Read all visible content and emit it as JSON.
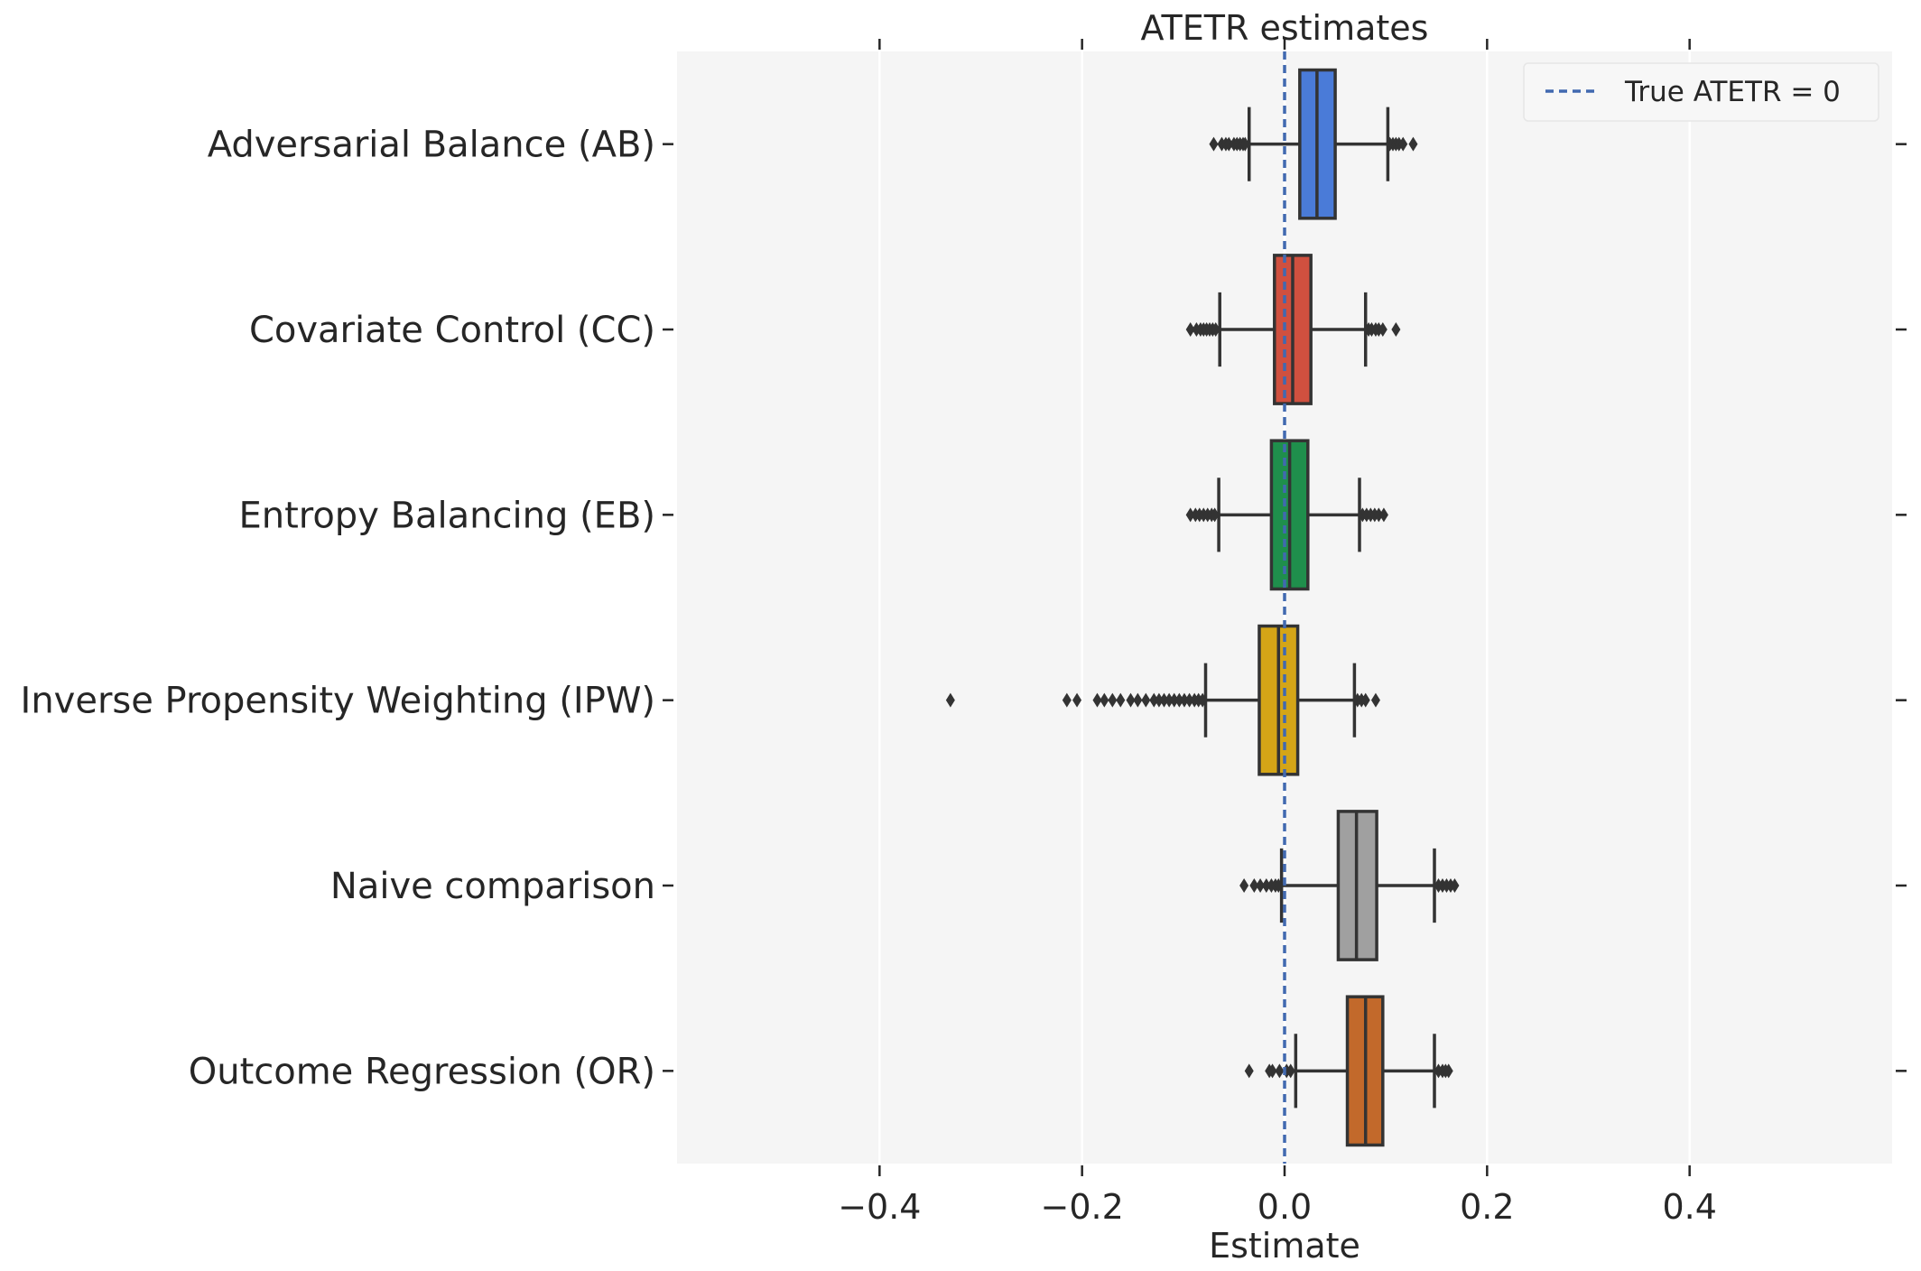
{
  "chart_data": {
    "type": "box",
    "title": "ATETR estimates",
    "xlabel": "Estimate",
    "ylabel": "",
    "xlim": [
      -0.6,
      0.6
    ],
    "x_ticks": [
      -0.4,
      -0.2,
      0.0,
      0.2,
      0.4
    ],
    "x_tick_labels": [
      "−0.4",
      "−0.2",
      "0.0",
      "0.2",
      "0.4"
    ],
    "grid": "vertical",
    "background": "#f5f5f5",
    "categories": [
      "Adversarial Balance (AB)",
      "Covariate Control (CC)",
      "Entropy Balancing (EB)",
      "Inverse Propensity Weighting (IPW)",
      "Naive comparison",
      "Outcome Regression (OR)"
    ],
    "series": [
      {
        "category": "Adversarial Balance (AB)",
        "color": "#4a7bd8",
        "whisker_low": -0.035,
        "q1": 0.015,
        "median": 0.032,
        "q3": 0.05,
        "whisker_high": 0.102,
        "outliers": [
          -0.07,
          -0.062,
          -0.058,
          -0.055,
          -0.05,
          -0.047,
          -0.044,
          -0.041,
          -0.039,
          0.104,
          0.107,
          0.11,
          0.113,
          0.117,
          0.127
        ]
      },
      {
        "category": "Covariate Control (CC)",
        "color": "#d0503f",
        "whisker_low": -0.064,
        "q1": -0.01,
        "median": 0.008,
        "q3": 0.026,
        "whisker_high": 0.08,
        "outliers": [
          -0.093,
          -0.087,
          -0.083,
          -0.08,
          -0.077,
          -0.074,
          -0.071,
          -0.068,
          0.083,
          0.086,
          0.09,
          0.093,
          0.097,
          0.11
        ]
      },
      {
        "category": "Entropy Balancing (EB)",
        "color": "#1f8f4c",
        "whisker_low": -0.065,
        "q1": -0.013,
        "median": 0.005,
        "q3": 0.023,
        "whisker_high": 0.074,
        "outliers": [
          -0.093,
          -0.088,
          -0.084,
          -0.08,
          -0.076,
          -0.072,
          -0.069,
          0.077,
          0.081,
          0.085,
          0.089,
          0.093,
          0.098
        ]
      },
      {
        "category": "Inverse Propensity Weighting (IPW)",
        "color": "#d4a517",
        "whisker_low": -0.078,
        "q1": -0.025,
        "median": -0.006,
        "q3": 0.013,
        "whisker_high": 0.069,
        "outliers": [
          -0.33,
          -0.215,
          -0.205,
          -0.185,
          -0.178,
          -0.17,
          -0.162,
          -0.152,
          -0.145,
          -0.137,
          -0.129,
          -0.124,
          -0.119,
          -0.114,
          -0.109,
          -0.104,
          -0.099,
          -0.094,
          -0.089,
          -0.085,
          -0.081,
          0.072,
          0.076,
          0.08,
          0.09
        ]
      },
      {
        "category": "Naive comparison",
        "color": "#a0a0a0",
        "whisker_low": -0.003,
        "q1": 0.053,
        "median": 0.071,
        "q3": 0.091,
        "whisker_high": 0.148,
        "outliers": [
          -0.04,
          -0.03,
          -0.024,
          -0.018,
          -0.013,
          -0.009,
          -0.006,
          0.152,
          0.156,
          0.16,
          0.164,
          0.168
        ]
      },
      {
        "category": "Outcome Regression (OR)",
        "color": "#c2692b",
        "whisker_low": 0.011,
        "q1": 0.062,
        "median": 0.08,
        "q3": 0.097,
        "whisker_high": 0.148,
        "outliers": [
          -0.035,
          -0.015,
          -0.012,
          -0.005,
          0.002,
          0.006,
          0.152,
          0.156,
          0.159,
          0.162
        ]
      }
    ],
    "reference_line": {
      "x": 0,
      "color": "#4169b0",
      "style": "dashed",
      "label": "True ATETR = 0"
    },
    "legend": {
      "position": "top-right",
      "entries": [
        "True ATETR = 0"
      ]
    }
  }
}
